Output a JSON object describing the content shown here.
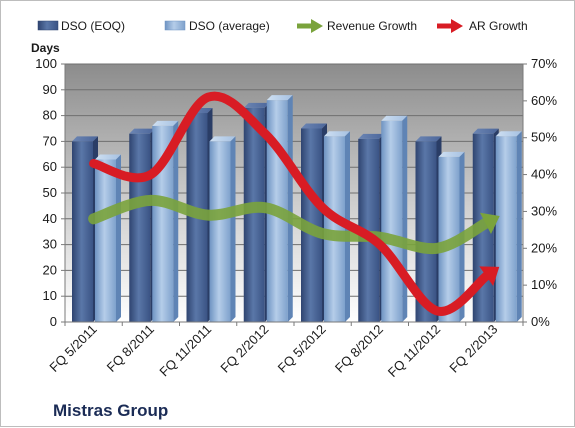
{
  "company": "Mistras Group",
  "chart_data": {
    "type": "bar",
    "categories": [
      "FQ 5/2011",
      "FQ 8/2011",
      "FQ 11/2011",
      "FQ 2/2012",
      "FQ 5/2012",
      "FQ 8/2012",
      "FQ 11/2012",
      "FQ 2/2013"
    ],
    "series": [
      {
        "name": "DSO (EOQ)",
        "type": "bar",
        "axis": "left",
        "values": [
          70,
          73,
          81,
          83,
          75,
          71,
          70,
          73
        ],
        "color": "#4a6391"
      },
      {
        "name": "DSO (average)",
        "type": "bar",
        "axis": "left",
        "values": [
          63,
          76,
          70,
          86,
          72,
          78,
          64,
          72
        ],
        "color": "#8fb0d6"
      },
      {
        "name": "Revenue Growth",
        "type": "line",
        "axis": "right",
        "values": [
          0.28,
          0.33,
          0.29,
          0.31,
          0.24,
          0.23,
          0.2,
          0.28
        ],
        "color": "#7aa33c"
      },
      {
        "name": "AR Growth",
        "type": "line",
        "axis": "right",
        "values": [
          0.43,
          0.4,
          0.61,
          0.51,
          0.31,
          0.21,
          0.03,
          0.14
        ],
        "color": "#d81c24"
      }
    ],
    "ylabel": "Days",
    "ylim": [
      0,
      100
    ],
    "yticks": [
      0,
      10,
      20,
      30,
      40,
      50,
      60,
      70,
      80,
      90,
      100
    ],
    "y2lim": [
      0,
      0.7
    ],
    "y2ticks": [
      "0%",
      "10%",
      "20%",
      "30%",
      "40%",
      "50%",
      "60%",
      "70%"
    ],
    "legend": "top",
    "grid": true
  }
}
